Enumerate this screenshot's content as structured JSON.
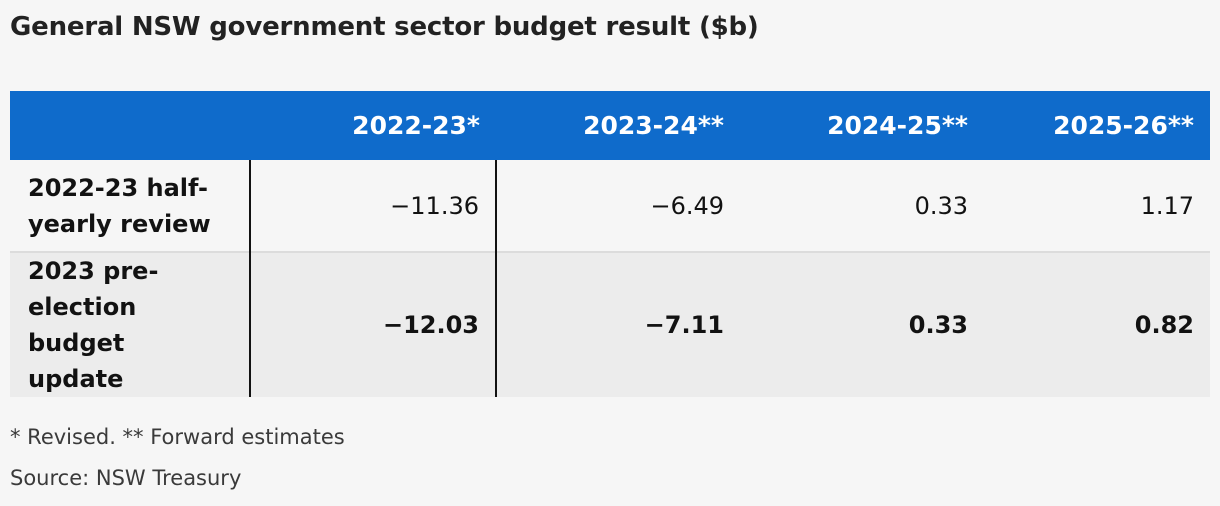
{
  "title": "General NSW government sector budget result ($b)",
  "chart_data": {
    "type": "table",
    "title": "General NSW government sector budget result ($b)",
    "columns": [
      "",
      "2022-23*",
      "2023-24**",
      "2024-25**",
      "2025-26**"
    ],
    "rows": [
      {
        "label": "2022-23 half-yearly review",
        "values": [
          "−11.36",
          "−6.49",
          "0.33",
          "1.17"
        ],
        "bold": false
      },
      {
        "label": "2023 pre-election budget update",
        "values": [
          "−12.03",
          "−7.11",
          "0.33",
          "0.82"
        ],
        "bold": true
      }
    ],
    "header_color": "#0f6bcb"
  },
  "notes": {
    "footnote": "* Revised. ** Forward estimates",
    "source": "Source: NSW Treasury"
  }
}
